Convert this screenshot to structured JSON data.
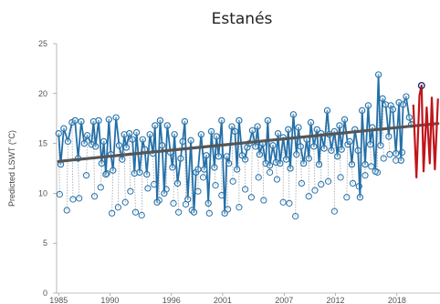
{
  "chart_data": {
    "type": "line",
    "title": "Estanés",
    "ylabel": "Predicted LSWT (°C)",
    "xlabel": "",
    "xlim": [
      1984.8,
      2022.2
    ],
    "ylim": [
      0,
      25
    ],
    "x_ticks": [
      1985,
      1990,
      1996,
      2001,
      2007,
      2012,
      2018
    ],
    "y_ticks": [
      0,
      5,
      10,
      15,
      20,
      25
    ],
    "grid": false,
    "colors": {
      "main": "#2470a8",
      "aux": "#9aa3ab",
      "trend": "#555555",
      "recent": "#c0151b",
      "recent_point": "#1f2f7a"
    },
    "series": [
      {
        "role": "seasonal-line",
        "x": [
          1985.0,
          1985.2,
          1985.5,
          1985.9,
          1986.3,
          1986.6,
          1986.9,
          1987.2,
          1987.5,
          1987.8,
          1988.2,
          1988.4,
          1988.6,
          1988.9,
          1989.2,
          1989.4,
          1989.6,
          1989.9,
          1990.1,
          1990.3,
          1990.6,
          1990.9,
          1991.2,
          1991.4,
          1991.6,
          1991.9,
          1992.2,
          1992.4,
          1992.6,
          1992.9,
          1993.2,
          1993.4,
          1993.6,
          1993.9,
          1994.2,
          1994.4,
          1994.6,
          1994.9,
          1995.1,
          1995.3,
          1995.6,
          1995.9,
          1996.1,
          1996.3,
          1996.6,
          1996.9,
          1997.1,
          1997.3,
          1997.6,
          1997.9,
          1998.2,
          1998.4,
          1998.6,
          1998.9,
          1999.2,
          1999.4,
          1999.6,
          1999.9,
          2000.2,
          2000.4,
          2000.6,
          2000.9,
          2001.2,
          2001.4,
          2001.6,
          2001.9,
          2002.2,
          2002.4,
          2002.6,
          2002.9,
          2003.2,
          2003.4,
          2003.6,
          2003.9,
          2004.2,
          2004.4,
          2004.6,
          2004.9,
          2005.2,
          2005.4,
          2005.6,
          2005.9,
          2006.2,
          2006.4,
          2006.6,
          2006.9,
          2007.2,
          2007.4,
          2007.6,
          2007.9,
          2008.2,
          2008.4,
          2008.6,
          2008.9,
          2009.2,
          2009.4,
          2009.6,
          2009.9,
          2010.2,
          2010.4,
          2010.6,
          2010.9,
          2011.2,
          2011.4,
          2011.6,
          2011.9,
          2012.2,
          2012.4,
          2012.6,
          2012.9,
          2013.2,
          2013.4,
          2013.6,
          2013.9,
          2014.2,
          2014.4,
          2014.6,
          2014.9,
          2015.2,
          2015.4,
          2015.6,
          2015.9,
          2016.2,
          2016.4,
          2016.6,
          2016.9,
          2017.2,
          2017.4,
          2017.6,
          2017.9,
          2018.2,
          2018.4,
          2018.6,
          2018.9,
          2019.2,
          2019.4
        ],
        "values": [
          16.0,
          12.9,
          16.5,
          15.2,
          17.1,
          17.3,
          13.5,
          17.2,
          15.0,
          15.8,
          14.9,
          17.2,
          14.7,
          17.3,
          13.0,
          15.2,
          11.9,
          17.4,
          13.9,
          12.3,
          17.6,
          14.8,
          13.4,
          15.9,
          14.6,
          16.0,
          15.4,
          12.0,
          16.1,
          12.1,
          15.4,
          14.4,
          11.9,
          15.9,
          14.0,
          16.8,
          9.1,
          17.3,
          14.8,
          10.0,
          16.8,
          14.1,
          12.6,
          15.9,
          11.0,
          13.5,
          15.2,
          17.2,
          9.4,
          15.3,
          8.1,
          12.1,
          12.4,
          15.9,
          12.4,
          13.8,
          9.0,
          16.2,
          12.6,
          15.7,
          13.7,
          17.3,
          8.0,
          13.7,
          13.0,
          16.7,
          16.2,
          12.4,
          17.3,
          13.8,
          13.4,
          14.6,
          15.0,
          16.3,
          14.7,
          16.7,
          13.9,
          15.0,
          13.0,
          17.3,
          12.8,
          14.8,
          13.1,
          16.0,
          13.0,
          15.6,
          13.4,
          16.4,
          12.5,
          17.9,
          13.9,
          16.6,
          14.7,
          13.0,
          15.4,
          13.5,
          17.1,
          14.7,
          16.4,
          12.9,
          16.0,
          14.5,
          18.3,
          15.9,
          14.3,
          16.2,
          13.7,
          16.8,
          14.4,
          17.4,
          14.9,
          15.2,
          12.9,
          16.4,
          14.3,
          9.6,
          18.3,
          12.9,
          18.8,
          14.9,
          16.6,
          12.2,
          21.9,
          14.8,
          19.5,
          18.9,
          15.7,
          18.8,
          18.4,
          14.0,
          19.1,
          13.3,
          18.9,
          19.7,
          17.6,
          16.9
        ]
      },
      {
        "role": "scatter-low",
        "x": [
          1985.1,
          1985.8,
          1986.4,
          1987.0,
          1987.7,
          1988.5,
          1989.1,
          1989.7,
          1990.2,
          1990.8,
          1991.5,
          1992.0,
          1992.5,
          1993.1,
          1993.7,
          1994.3,
          1994.8,
          1995.5,
          1996.2,
          1996.7,
          1997.4,
          1998.0,
          1998.6,
          1999.1,
          1999.7,
          2000.3,
          2000.9,
          2001.5,
          2002.0,
          2002.6,
          2003.2,
          2003.8,
          2004.5,
          2005.0,
          2005.6,
          2006.3,
          2006.9,
          2007.5,
          2008.1,
          2008.7,
          2009.4,
          2010.0,
          2010.6,
          2011.3,
          2011.9,
          2012.5,
          2013.1,
          2013.7,
          2014.3,
          2014.9,
          2015.5,
          2016.1,
          2016.7,
          2017.3,
          2017.9,
          2018.5
        ],
        "values": [
          9.9,
          8.3,
          9.4,
          9.5,
          11.8,
          9.7,
          10.6,
          12.0,
          8.0,
          8.6,
          9.1,
          10.2,
          8.1,
          7.8,
          10.5,
          10.9,
          9.3,
          10.4,
          9.0,
          8.1,
          8.9,
          8.3,
          10.2,
          11.6,
          8.0,
          10.8,
          9.8,
          8.4,
          11.2,
          8.6,
          10.4,
          9.6,
          11.6,
          9.3,
          12.1,
          11.4,
          9.1,
          9.0,
          7.7,
          11.0,
          9.7,
          10.3,
          10.9,
          11.2,
          8.2,
          11.6,
          9.6,
          11.0,
          10.7,
          11.8,
          12.7,
          12.1,
          13.5,
          13.9,
          13.3,
          14.1
        ]
      },
      {
        "role": "trend",
        "x": [
          1985.0,
          2022.0
        ],
        "values": [
          13.2,
          17.0
        ]
      },
      {
        "role": "recent",
        "x": [
          2019.6,
          2019.9,
          2020.2,
          2020.4,
          2020.6,
          2020.9,
          2021.2,
          2021.4,
          2021.7,
          2022.0
        ],
        "values": [
          18.9,
          11.6,
          19.8,
          20.8,
          12.2,
          18.6,
          13.0,
          19.6,
          12.4,
          19.5
        ]
      }
    ]
  }
}
